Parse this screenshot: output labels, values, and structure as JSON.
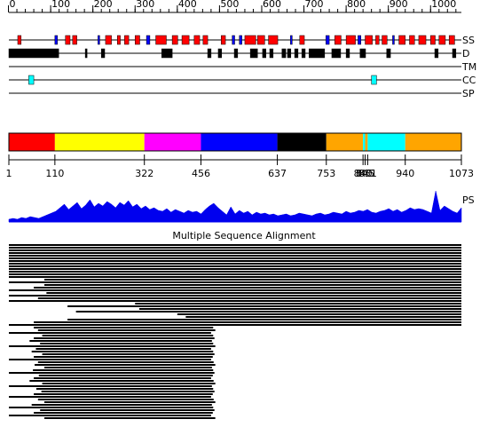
{
  "ruler": {
    "ticks": [
      0,
      100,
      200,
      300,
      400,
      500,
      600,
      700,
      800,
      900,
      1000
    ],
    "minor_step": 20
  },
  "tracks": {
    "ss": {
      "label": "SS",
      "helix_color": "#ff0000",
      "strand_color": "#0000ff",
      "helix": [
        [
          22,
          30
        ],
        [
          135,
          146
        ],
        [
          152,
          162
        ],
        [
          230,
          244
        ],
        [
          258,
          265
        ],
        [
          275,
          285
        ],
        [
          300,
          311
        ],
        [
          349,
          374
        ],
        [
          388,
          401
        ],
        [
          411,
          428
        ],
        [
          440,
          453
        ],
        [
          461,
          472
        ],
        [
          504,
          514
        ],
        [
          560,
          586
        ],
        [
          590,
          607
        ],
        [
          616,
          638
        ],
        [
          690,
          701
        ],
        [
          773,
          788
        ],
        [
          800,
          822
        ],
        [
          845,
          862
        ],
        [
          870,
          878
        ],
        [
          885,
          897
        ],
        [
          925,
          940
        ],
        [
          950,
          962
        ],
        [
          972,
          989
        ],
        [
          1000,
          1011
        ],
        [
          1020,
          1035
        ],
        [
          1044,
          1057
        ]
      ],
      "strand": [
        [
          110,
          116
        ],
        [
          212,
          216
        ],
        [
          327,
          335
        ],
        [
          530,
          536
        ],
        [
          547,
          553
        ],
        [
          668,
          672
        ],
        [
          752,
          760
        ],
        [
          828,
          835
        ],
        [
          910,
          914
        ]
      ]
    },
    "d": {
      "label": "D",
      "color": "#000000",
      "segments": [
        [
          1,
          119
        ],
        [
          182,
          186
        ],
        [
          220,
          228
        ],
        [
          363,
          388
        ],
        [
          472,
          480
        ],
        [
          497,
          505
        ],
        [
          535,
          543
        ],
        [
          573,
          590
        ],
        [
          602,
          610
        ],
        [
          619,
          627
        ],
        [
          648,
          657
        ],
        [
          661,
          669
        ],
        [
          678,
          686
        ],
        [
          695,
          703
        ],
        [
          712,
          749
        ],
        [
          766,
          787
        ],
        [
          800,
          808
        ],
        [
          833,
          846
        ],
        [
          896,
          905
        ],
        [
          1010,
          1018
        ],
        [
          1052,
          1060
        ]
      ]
    },
    "tm": {
      "label": "TM"
    },
    "cc": {
      "label": "CC",
      "color": "#00ffff",
      "segments": [
        [
          48,
          60
        ],
        [
          860,
          872
        ]
      ]
    },
    "sp": {
      "label": "SP"
    }
  },
  "domains": {
    "boundaries": [
      1,
      110,
      322,
      456,
      637,
      753,
      840,
      845,
      851,
      940,
      1073
    ],
    "colors": [
      "#ff0000",
      "#ffff00",
      "#ff00ff",
      "#0000ff",
      "#000000",
      "#ffa500",
      "#00ffff",
      "#ffa500",
      "#00ffff",
      "#ffa500"
    ]
  },
  "ps": {
    "label": "PS",
    "color": "#0000ee",
    "values": [
      3,
      4,
      3,
      5,
      4,
      6,
      5,
      4,
      6,
      8,
      10,
      12,
      16,
      20,
      14,
      18,
      22,
      15,
      19,
      25,
      17,
      21,
      18,
      23,
      20,
      16,
      22,
      19,
      24,
      17,
      20,
      15,
      18,
      14,
      16,
      13,
      12,
      15,
      11,
      14,
      12,
      10,
      13,
      11,
      12,
      9,
      14,
      18,
      21,
      16,
      12,
      8,
      17,
      9,
      13,
      10,
      12,
      8,
      11,
      9,
      10,
      8,
      9,
      7,
      8,
      9,
      7,
      8,
      10,
      9,
      8,
      7,
      9,
      10,
      8,
      9,
      11,
      10,
      9,
      12,
      10,
      11,
      13,
      12,
      14,
      11,
      10,
      12,
      13,
      15,
      12,
      14,
      11,
      13,
      16,
      14,
      15,
      14,
      12,
      10,
      35,
      13,
      18,
      15,
      12,
      10,
      16
    ]
  },
  "msa": {
    "title": "Multiple Sequence Alignment",
    "rows": [
      [
        1,
        1073
      ],
      [
        1,
        1073
      ],
      [
        1,
        1073
      ],
      [
        1,
        1073
      ],
      [
        1,
        1073
      ],
      [
        1,
        1073
      ],
      [
        1,
        1073
      ],
      [
        1,
        1073
      ],
      [
        1,
        1073
      ],
      [
        1,
        1073
      ],
      [
        1,
        1073
      ],
      [
        1,
        1073
      ],
      [
        1,
        1073
      ],
      [
        85,
        1073
      ],
      [
        1,
        1073
      ],
      [
        85,
        1073
      ],
      [
        60,
        1073
      ],
      [
        1,
        1073
      ],
      [
        90,
        1073
      ],
      [
        1,
        1073
      ],
      [
        70,
        1073
      ],
      [
        1,
        1073
      ],
      [
        300,
        1073
      ],
      [
        140,
        1073
      ],
      [
        310,
        1073
      ],
      [
        160,
        1073
      ],
      [
        400,
        1073
      ],
      [
        420,
        1073
      ],
      [
        140,
        1073
      ],
      [
        60,
        1073
      ],
      [
        1,
        1073
      ],
      [
        60,
        485
      ],
      [
        70,
        490
      ],
      [
        1,
        480
      ],
      [
        80,
        485
      ],
      [
        60,
        488
      ],
      [
        50,
        482
      ],
      [
        75,
        485
      ],
      [
        1,
        490
      ],
      [
        65,
        480
      ],
      [
        55,
        485
      ],
      [
        80,
        488
      ],
      [
        60,
        484
      ],
      [
        1,
        480
      ],
      [
        70,
        486
      ],
      [
        62,
        490
      ],
      [
        85,
        482
      ],
      [
        58,
        485
      ],
      [
        1,
        488
      ],
      [
        72,
        484
      ],
      [
        60,
        480
      ],
      [
        50,
        486
      ],
      [
        80,
        490
      ],
      [
        1,
        482
      ],
      [
        66,
        485
      ],
      [
        78,
        488
      ],
      [
        60,
        484
      ],
      [
        1,
        480
      ],
      [
        70,
        486
      ],
      [
        85,
        490
      ],
      [
        55,
        482
      ],
      [
        1,
        485
      ],
      [
        75,
        488
      ],
      [
        60,
        484
      ],
      [
        1,
        480
      ],
      [
        85,
        490
      ]
    ]
  }
}
